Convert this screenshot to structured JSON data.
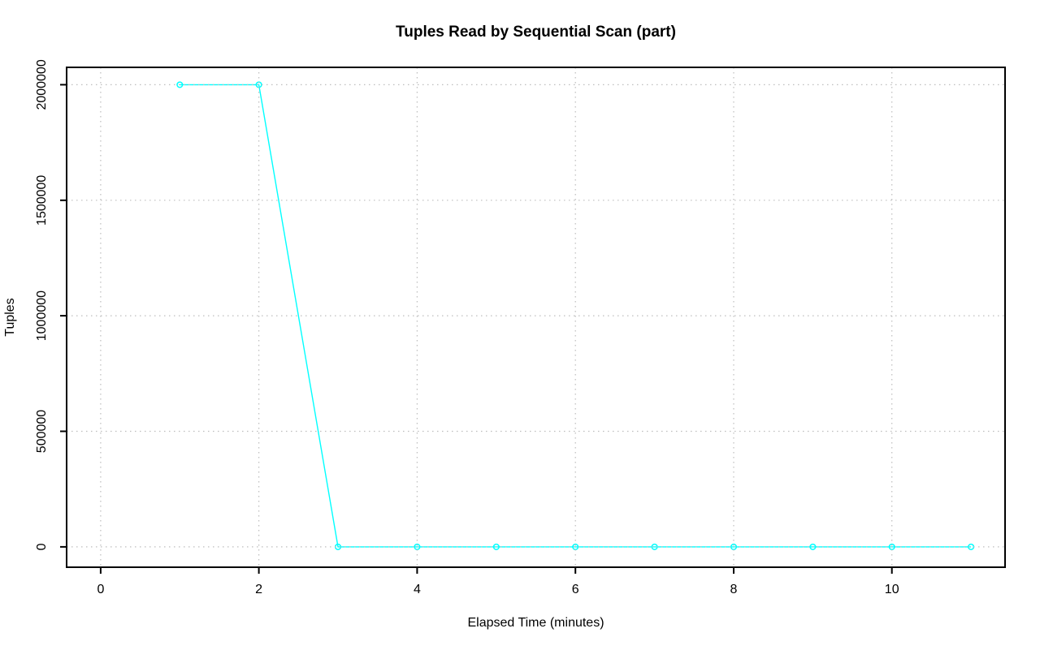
{
  "chart_data": {
    "type": "line",
    "title": "Tuples Read by Sequential Scan (part)",
    "xlabel": "Elapsed Time (minutes)",
    "ylabel": "Tuples",
    "x": [
      1,
      2,
      3,
      4,
      5,
      6,
      7,
      8,
      9,
      10,
      11
    ],
    "y": [
      2000000,
      2000000,
      0,
      0,
      0,
      0,
      0,
      0,
      0,
      0,
      0
    ],
    "x_ticks": [
      0,
      2,
      4,
      6,
      8,
      10
    ],
    "x_tick_labels": [
      "0",
      "2",
      "4",
      "6",
      "8",
      "10"
    ],
    "y_ticks": [
      0,
      500000,
      1000000,
      1500000,
      2000000
    ],
    "y_tick_labels": [
      "0",
      "500000",
      "1000000",
      "1500000",
      "2000000"
    ],
    "xlim": [
      -0.43,
      11.43
    ],
    "ylim": [
      -88000,
      2075000
    ],
    "grid": true,
    "grid_style": "dotted",
    "legend": null,
    "marker": "open-circle",
    "series_color": "#00ffff",
    "grid_color": "#bdbdbd",
    "axis_color": "#000000",
    "background_color": "#ffffff"
  }
}
